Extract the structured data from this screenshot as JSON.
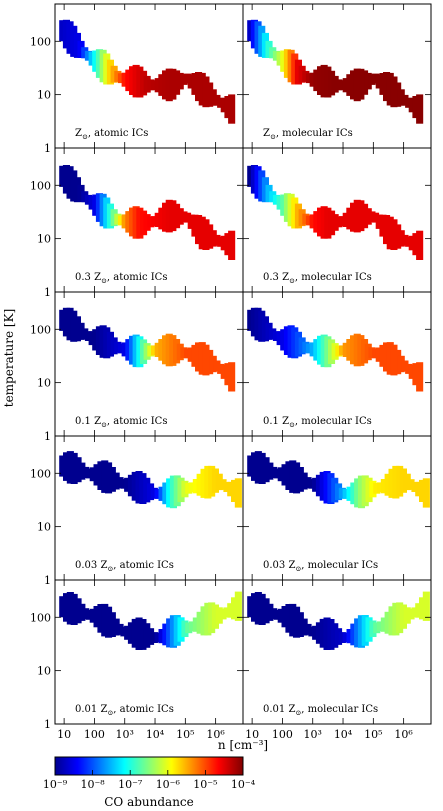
{
  "figure": {
    "y_axis_label": "temperature [K]",
    "x_axis_label": "n [cm⁻³]",
    "colorbar_label": "CO abundance",
    "colorbar_ticks": [
      "10⁻⁹",
      "10⁻⁸",
      "10⁻⁷",
      "10⁻⁶",
      "10⁻⁵",
      "10⁻⁴"
    ],
    "x_ticks": [
      "10",
      "100",
      "10³",
      "10⁴",
      "10⁵",
      "10⁶"
    ],
    "y_ticks": [
      "1",
      "10",
      "100"
    ],
    "colormap": [
      "#00008f",
      "#0000ff",
      "#00ffff",
      "#ffff00",
      "#ff0000",
      "#800000"
    ]
  },
  "chart_data": {
    "type": "scatter",
    "x_scale": "log",
    "y_scale": "log",
    "xlim": [
      5,
      8000000
    ],
    "ylim": [
      1,
      500
    ],
    "color_scale": "log",
    "clim": [
      1e-09,
      0.0001
    ],
    "xlabel": "n [cm⁻³]",
    "ylabel": "temperature [K]",
    "colorbar_label": "CO abundance",
    "panels": [
      {
        "label_pre": "",
        "label_post": ", atomic ICs",
        "ridge": [
          [
            8,
            150,
            2e-09
          ],
          [
            30,
            70,
            3e-09
          ],
          [
            100,
            40,
            8e-08
          ],
          [
            300,
            25,
            2e-06
          ],
          [
            1000,
            18,
            2e-05
          ],
          [
            5000,
            15,
            5e-05
          ],
          [
            30000,
            14,
            6e-05
          ],
          [
            100000,
            20,
            6e-05
          ],
          [
            300000,
            12,
            6e-05
          ],
          [
            3000000,
            5,
            6e-05
          ]
        ]
      },
      {
        "label_pre": "",
        "label_post": ", molecular ICs",
        "ridge": [
          [
            8,
            150,
            2e-09
          ],
          [
            30,
            70,
            1e-07
          ],
          [
            100,
            40,
            1e-06
          ],
          [
            300,
            25,
            3e-05
          ],
          [
            1000,
            18,
            8e-05
          ],
          [
            5000,
            15,
            9e-05
          ],
          [
            30000,
            14,
            9e-05
          ],
          [
            100000,
            20,
            9e-05
          ],
          [
            300000,
            12,
            9e-05
          ],
          [
            3000000,
            5,
            9e-05
          ]
        ]
      },
      {
        "label_pre": "0.3 ",
        "label_post": ", atomic ICs",
        "ridge": [
          [
            8,
            140,
            1e-09
          ],
          [
            30,
            70,
            1e-09
          ],
          [
            100,
            40,
            3e-09
          ],
          [
            300,
            25,
            1e-07
          ],
          [
            1000,
            20,
            5e-06
          ],
          [
            3000,
            18,
            2e-05
          ],
          [
            30000,
            25,
            3e-05
          ],
          [
            100000,
            25,
            3e-05
          ],
          [
            300000,
            12,
            3e-05
          ],
          [
            3000000,
            7,
            3e-05
          ]
        ]
      },
      {
        "label_pre": "0.3 ",
        "label_post": ", molecular ICs",
        "ridge": [
          [
            8,
            140,
            1e-09
          ],
          [
            30,
            70,
            3e-08
          ],
          [
            100,
            40,
            2e-07
          ],
          [
            300,
            25,
            3e-06
          ],
          [
            1000,
            20,
            2e-05
          ],
          [
            3000,
            18,
            3e-05
          ],
          [
            30000,
            25,
            3e-05
          ],
          [
            100000,
            25,
            3e-05
          ],
          [
            300000,
            12,
            3e-05
          ],
          [
            3000000,
            7,
            3e-05
          ]
        ]
      },
      {
        "label_pre": "0.1 ",
        "label_post": ", atomic ICs",
        "ridge": [
          [
            8,
            140,
            1e-09
          ],
          [
            100,
            60,
            1e-09
          ],
          [
            1000,
            40,
            3e-09
          ],
          [
            3000,
            35,
            1e-07
          ],
          [
            10000,
            40,
            3e-06
          ],
          [
            100000,
            35,
            1e-05
          ],
          [
            1000000,
            20,
            1e-05
          ],
          [
            3000000,
            12,
            1e-05
          ]
        ]
      },
      {
        "label_pre": "0.1 ",
        "label_post": ", molecular ICs",
        "ridge": [
          [
            8,
            140,
            1e-09
          ],
          [
            100,
            60,
            3e-09
          ],
          [
            1000,
            40,
            3e-08
          ],
          [
            3000,
            35,
            3e-07
          ],
          [
            10000,
            40,
            4e-06
          ],
          [
            100000,
            35,
            1e-05
          ],
          [
            1000000,
            20,
            1e-05
          ],
          [
            3000000,
            12,
            1e-05
          ]
        ]
      },
      {
        "label_pre": "0.03 ",
        "label_post": ", atomic ICs",
        "ridge": [
          [
            8,
            130,
            1e-09
          ],
          [
            100,
            90,
            1e-09
          ],
          [
            1000,
            60,
            1e-09
          ],
          [
            10000,
            40,
            3e-09
          ],
          [
            30000,
            40,
            1e-07
          ],
          [
            100000,
            50,
            1e-06
          ],
          [
            1000000,
            70,
            2e-06
          ],
          [
            5000000,
            40,
            2e-06
          ]
        ]
      },
      {
        "label_pre": "0.03 ",
        "label_post": ", molecular ICs",
        "ridge": [
          [
            8,
            130,
            1e-09
          ],
          [
            100,
            90,
            1e-09
          ],
          [
            1000,
            60,
            1e-09
          ],
          [
            10000,
            40,
            3e-08
          ],
          [
            30000,
            40,
            3e-07
          ],
          [
            100000,
            50,
            1.5e-06
          ],
          [
            1000000,
            70,
            2e-06
          ],
          [
            5000000,
            40,
            2e-06
          ]
        ]
      },
      {
        "label_pre": "0.01 ",
        "label_post": ", atomic ICs",
        "ridge": [
          [
            8,
            150,
            1e-09
          ],
          [
            100,
            100,
            1e-09
          ],
          [
            1000,
            50,
            1e-09
          ],
          [
            10000,
            40,
            1e-09
          ],
          [
            100000,
            60,
            2e-07
          ],
          [
            1000000,
            100,
            8e-07
          ],
          [
            5000000,
            150,
            8e-07
          ]
        ]
      },
      {
        "label_pre": "0.01 ",
        "label_post": ", molecular ICs",
        "ridge": [
          [
            8,
            150,
            1e-09
          ],
          [
            100,
            100,
            1e-09
          ],
          [
            1000,
            50,
            1e-09
          ],
          [
            10000,
            40,
            2e-09
          ],
          [
            100000,
            60,
            2e-07
          ],
          [
            1000000,
            100,
            8e-07
          ],
          [
            5000000,
            150,
            8e-07
          ]
        ]
      }
    ]
  }
}
